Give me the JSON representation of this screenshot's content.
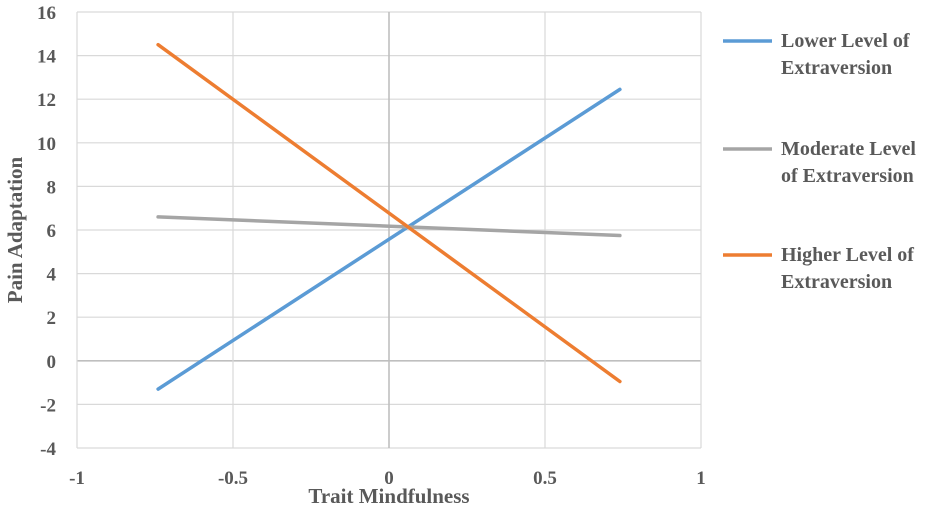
{
  "chart_data": {
    "type": "line",
    "title": "",
    "xlabel": "Trait Mindfulness",
    "ylabel": "Pain Adaptation",
    "xlim": [
      -1,
      1
    ],
    "ylim": [
      -4,
      16
    ],
    "xticks": [
      -1,
      -0.5,
      0,
      0.5,
      1
    ],
    "xtick_labels": [
      "-1",
      "-0.5",
      "0",
      "0.5",
      "1"
    ],
    "yticks": [
      -4,
      -2,
      0,
      2,
      4,
      6,
      8,
      10,
      12,
      14,
      16
    ],
    "ytick_labels": [
      "-4",
      "-2",
      "0",
      "2",
      "4",
      "6",
      "8",
      "10",
      "12",
      "14",
      "16"
    ],
    "grid": true,
    "legend_placement": "right",
    "series": [
      {
        "name": "Lower Level of Extraversion",
        "legend_lines": [
          "Lower Level of",
          "Extraversion"
        ],
        "color": "#5B9BD5",
        "x": [
          -0.74,
          0.74
        ],
        "y": [
          -1.3,
          12.45
        ]
      },
      {
        "name": "Moderate Level of Extraversion",
        "legend_lines": [
          "Moderate Level",
          "of Extraversion"
        ],
        "color": "#A5A5A5",
        "x": [
          -0.74,
          0.74
        ],
        "y": [
          6.6,
          5.75
        ]
      },
      {
        "name": "Higher Level of Extraversion",
        "legend_lines": [
          "Higher Level of",
          "Extraversion"
        ],
        "color": "#ED7D31",
        "x": [
          -0.74,
          0.74
        ],
        "y": [
          14.5,
          -0.95
        ]
      }
    ]
  }
}
